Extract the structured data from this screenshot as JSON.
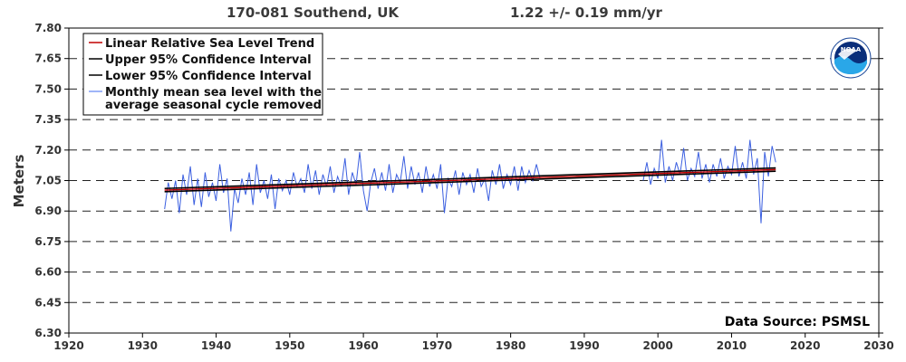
{
  "header": {
    "station": "170-081 Southend, UK",
    "rate": "1.22 +/-  0.19 mm/yr"
  },
  "source": "Data Source: PSMSL",
  "logo": {
    "text": "NOAA",
    "icon": "noaa-logo-icon"
  },
  "colors": {
    "trend": "#c00000",
    "confidence": "#000000",
    "monthly": "#3b5fe0",
    "grid": "#222222"
  },
  "chart_data": {
    "type": "line",
    "ylabel": "Meters",
    "xlabel": "",
    "xlim": [
      1920,
      2030
    ],
    "ylim": [
      6.3,
      7.8
    ],
    "x_ticks": [
      "1920",
      "1930",
      "1940",
      "1950",
      "1960",
      "1970",
      "1980",
      "1990",
      "2000",
      "2010",
      "2020",
      "2030"
    ],
    "y_ticks": [
      "6.30",
      "6.45",
      "6.60",
      "6.75",
      "6.90",
      "7.05",
      "7.20",
      "7.35",
      "7.50",
      "7.65",
      "7.80"
    ],
    "grid": "horizontal dashed",
    "legend_position": "top-left",
    "legend": [
      {
        "label": "Linear Relative Sea Level Trend",
        "color": "#c00000"
      },
      {
        "label": "Upper 95% Confidence Interval",
        "color": "#000000"
      },
      {
        "label": "Lower 95% Confidence Interval",
        "color": "#000000"
      },
      {
        "label": "Monthly mean sea level with the",
        "label2": "average seasonal cycle removed",
        "color": "#3b5fe0"
      }
    ],
    "trend": {
      "x": [
        1933.0,
        2016.0
      ],
      "y": [
        7.003,
        7.104
      ]
    },
    "upper_ci": {
      "x": [
        1933.0,
        2016.0
      ],
      "y": [
        7.011,
        7.112
      ]
    },
    "lower_ci": {
      "x": [
        1933.0,
        2016.0
      ],
      "y": [
        6.995,
        7.096
      ]
    },
    "monthly_segments": [
      {
        "name": "1933-1984",
        "x": [
          1933.0,
          1933.5,
          1934.0,
          1934.5,
          1935.0,
          1935.5,
          1936.0,
          1936.5,
          1937.0,
          1937.5,
          1938.0,
          1938.5,
          1939.0,
          1939.5,
          1940.0,
          1940.5,
          1941.0,
          1941.5,
          1942.0,
          1942.5,
          1943.0,
          1943.5,
          1944.0,
          1944.5,
          1945.0,
          1945.5,
          1946.0,
          1946.5,
          1947.0,
          1947.5,
          1948.0,
          1948.5,
          1949.0,
          1949.5,
          1950.0,
          1950.5,
          1951.0,
          1951.5,
          1952.0,
          1952.5,
          1953.0,
          1953.5,
          1954.0,
          1954.5,
          1955.0,
          1955.5,
          1956.0,
          1956.5,
          1957.0,
          1957.5,
          1958.0,
          1958.5,
          1959.0,
          1959.5,
          1960.0,
          1960.5,
          1961.0,
          1961.5,
          1962.0,
          1962.5,
          1963.0,
          1963.5,
          1964.0,
          1964.5,
          1965.0,
          1965.5,
          1966.0,
          1966.5,
          1967.0,
          1967.5,
          1968.0,
          1968.5,
          1969.0,
          1969.5,
          1970.0,
          1970.5,
          1971.0,
          1971.5,
          1972.0,
          1972.5,
          1973.0,
          1973.5,
          1974.0,
          1974.5,
          1975.0,
          1975.5,
          1976.0,
          1976.5,
          1977.0,
          1977.5,
          1978.0,
          1978.5,
          1979.0,
          1979.5,
          1980.0,
          1980.5,
          1981.0,
          1981.5,
          1982.0,
          1982.5,
          1983.0,
          1983.5,
          1984.0
        ],
        "y": [
          6.91,
          7.04,
          6.96,
          7.05,
          6.89,
          7.08,
          6.98,
          7.12,
          6.93,
          7.06,
          6.92,
          7.09,
          6.97,
          7.04,
          6.95,
          7.13,
          6.99,
          7.06,
          6.8,
          7.01,
          6.94,
          7.06,
          6.98,
          7.09,
          6.93,
          7.13,
          6.99,
          7.05,
          6.96,
          7.08,
          6.91,
          7.06,
          7.0,
          7.05,
          6.98,
          7.09,
          7.02,
          7.06,
          6.99,
          7.13,
          7.01,
          7.1,
          6.98,
          7.08,
          7.02,
          7.12,
          6.99,
          7.07,
          7.02,
          7.16,
          6.98,
          7.09,
          7.03,
          7.19,
          7.0,
          6.9,
          7.04,
          7.11,
          7.01,
          7.09,
          7.0,
          7.13,
          6.99,
          7.08,
          7.04,
          7.17,
          7.01,
          7.12,
          7.03,
          7.09,
          6.99,
          7.12,
          7.02,
          7.08,
          7.01,
          7.13,
          6.89,
          7.06,
          7.02,
          7.1,
          6.98,
          7.09,
          7.03,
          7.08,
          6.99,
          7.11,
          7.02,
          7.06,
          6.95,
          7.1,
          7.03,
          7.13,
          7.01,
          7.08,
          7.03,
          7.12,
          7.0,
          7.12,
          7.04,
          7.1,
          7.05,
          7.13,
          7.06
        ]
      },
      {
        "name": "1998-2016",
        "x": [
          1998.0,
          1998.5,
          1999.0,
          1999.5,
          2000.0,
          2000.5,
          2001.0,
          2001.5,
          2002.0,
          2002.5,
          2003.0,
          2003.5,
          2004.0,
          2004.5,
          2005.0,
          2005.5,
          2006.0,
          2006.5,
          2007.0,
          2007.5,
          2008.0,
          2008.5,
          2009.0,
          2009.5,
          2010.0,
          2010.5,
          2011.0,
          2011.5,
          2012.0,
          2012.5,
          2013.0,
          2013.5,
          2014.0,
          2014.5,
          2015.0,
          2015.5,
          2016.0
        ],
        "y": [
          7.05,
          7.14,
          7.03,
          7.11,
          7.06,
          7.25,
          7.04,
          7.12,
          7.05,
          7.14,
          7.08,
          7.21,
          7.05,
          7.11,
          7.07,
          7.19,
          7.06,
          7.13,
          7.04,
          7.13,
          7.07,
          7.16,
          7.06,
          7.12,
          7.08,
          7.22,
          7.07,
          7.14,
          7.06,
          7.25,
          7.08,
          7.16,
          6.84,
          7.19,
          7.07,
          7.22,
          7.14
        ]
      }
    ]
  }
}
